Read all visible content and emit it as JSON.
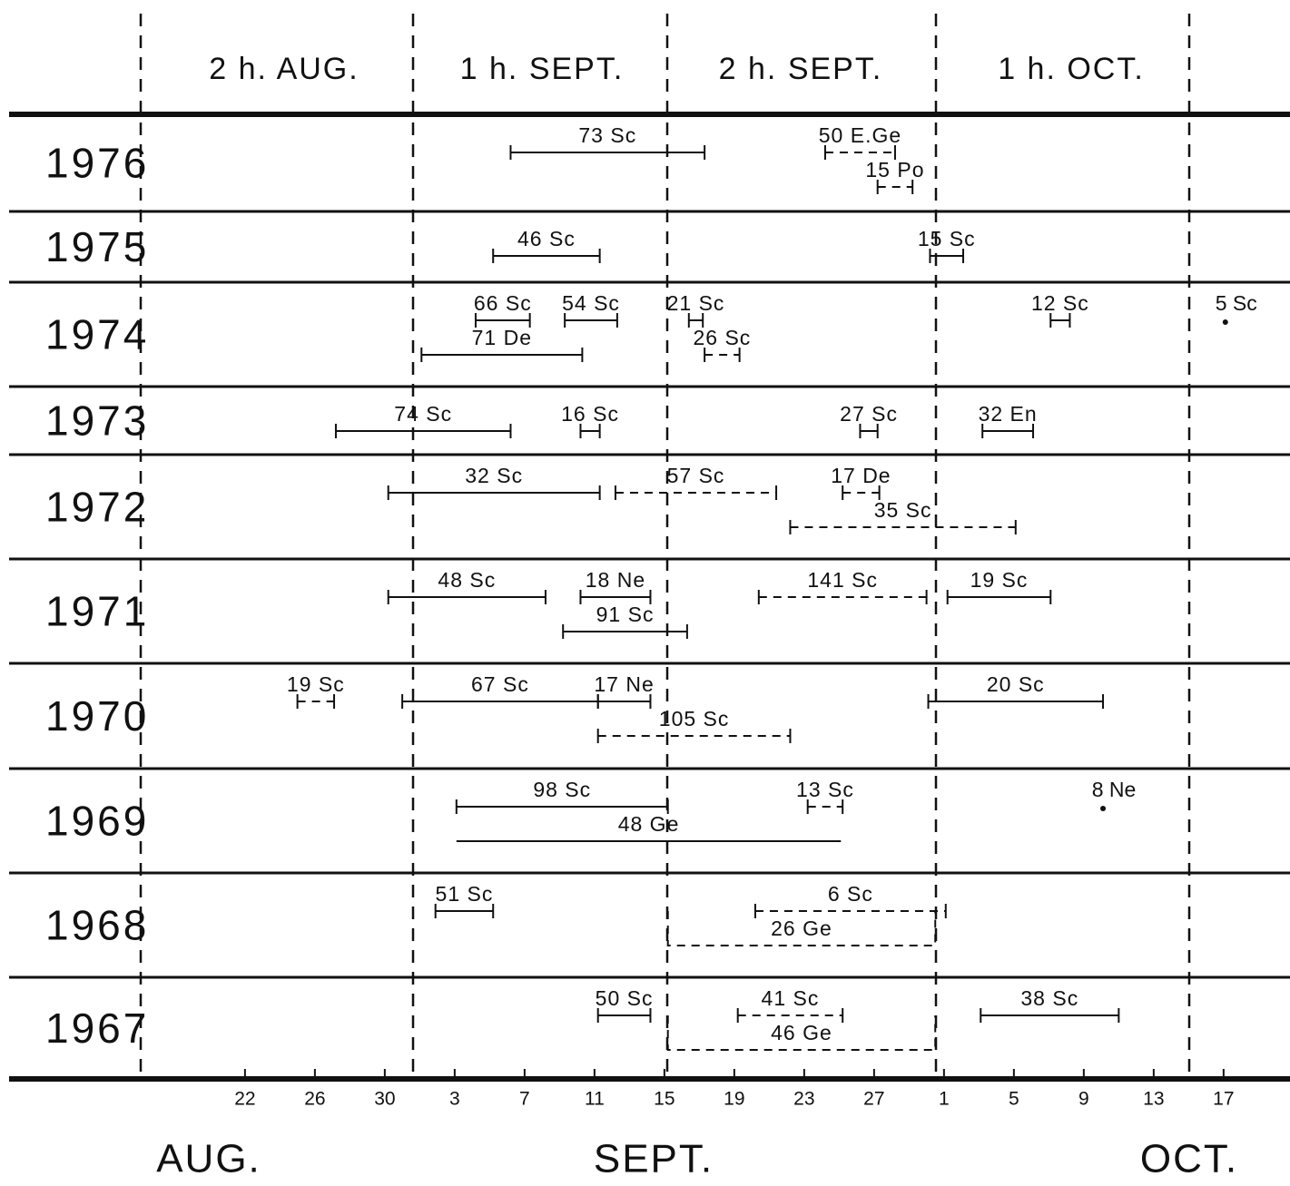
{
  "chart_data": {
    "type": "timeline",
    "periods": [
      "2 h. AUG.",
      "1 h. SEPT.",
      "2 h. SEPT.",
      "1 h. OCT."
    ],
    "months": [
      "AUG.",
      "SEPT.",
      "OCT."
    ],
    "xlim": [
      8.5,
      81.8
    ],
    "xticks": [
      22,
      26,
      30,
      {
        "value": 34,
        "label": "3"
      },
      {
        "value": 38,
        "label": "7"
      },
      {
        "value": 42,
        "label": "11"
      },
      {
        "value": 46,
        "label": "15"
      },
      {
        "value": 50,
        "label": "19"
      },
      {
        "value": 54,
        "label": "23"
      },
      {
        "value": 58,
        "label": "27"
      },
      {
        "value": 62,
        "label": "1"
      },
      {
        "value": 66,
        "label": "5"
      },
      {
        "value": 70,
        "label": "9"
      },
      {
        "value": 74,
        "label": "13"
      },
      {
        "value": 78,
        "label": "17"
      }
    ],
    "rows": [
      {
        "year": 1976,
        "items": [
          {
            "label": "73 Sc",
            "start": 37.2,
            "end": 48.3,
            "style": "solid",
            "lane": 0
          },
          {
            "label": "50 E.Ge",
            "start": 55.2,
            "end": 59.2,
            "style": "dashed",
            "lane": 0
          },
          {
            "label": "15 Po",
            "start": 58.2,
            "end": 60.2,
            "style": "dashed",
            "lane": 1
          }
        ]
      },
      {
        "year": 1975,
        "items": [
          {
            "label": "46 Sc",
            "start": 36.2,
            "end": 42.3,
            "style": "solid",
            "lane": 0
          },
          {
            "label": "15 Sc",
            "start": 61.2,
            "end": 63.1,
            "style": "solid",
            "lane": 0
          }
        ]
      },
      {
        "year": 1974,
        "items": [
          {
            "label": "66 Sc",
            "start": 35.2,
            "end": 38.3,
            "style": "solid",
            "lane": 0
          },
          {
            "label": "54 Sc",
            "start": 40.3,
            "end": 43.3,
            "style": "solid",
            "lane": 0
          },
          {
            "label": "21 Sc",
            "start": 47.4,
            "end": 48.2,
            "style": "solid",
            "lane": 0
          },
          {
            "label": "12 Sc",
            "start": 68.1,
            "end": 69.2,
            "style": "solid",
            "lane": 0
          },
          {
            "label": "5 Sc",
            "at": 78.1,
            "style": "point",
            "lane": 0
          },
          {
            "label": "71 De",
            "start": 32.1,
            "end": 41.3,
            "style": "solid",
            "lane": 1
          },
          {
            "label": "26 Sc",
            "start": 48.3,
            "end": 50.3,
            "style": "dashed",
            "lane": 1
          }
        ]
      },
      {
        "year": 1973,
        "items": [
          {
            "label": "74 Sc",
            "start": 27.2,
            "end": 37.2,
            "style": "solid",
            "lane": 0
          },
          {
            "label": "16 Sc",
            "start": 41.2,
            "end": 42.3,
            "style": "solid",
            "lane": 0
          },
          {
            "label": "27 Sc",
            "start": 57.2,
            "end": 58.2,
            "style": "solid",
            "lane": 0
          },
          {
            "label": "32 En",
            "start": 64.2,
            "end": 67.1,
            "style": "solid",
            "lane": 0
          }
        ]
      },
      {
        "year": 1972,
        "items": [
          {
            "label": "32 Sc",
            "start": 30.2,
            "end": 42.3,
            "style": "solid",
            "lane": 0
          },
          {
            "label": "57 Sc",
            "start": 43.2,
            "end": 52.4,
            "style": "dashed",
            "lane": 0
          },
          {
            "label": "17 De",
            "start": 56.2,
            "end": 58.3,
            "style": "dashed",
            "lane": 0
          },
          {
            "label": "35 Sc",
            "start": 53.2,
            "end": 66.1,
            "style": "dashed",
            "lane": 1
          }
        ]
      },
      {
        "year": 1971,
        "items": [
          {
            "label": "48 Sc",
            "start": 30.2,
            "end": 39.2,
            "style": "solid",
            "lane": 0
          },
          {
            "label": "18 Ne",
            "start": 41.2,
            "end": 45.2,
            "style": "solid",
            "lane": 0
          },
          {
            "label": "141 Sc",
            "start": 51.4,
            "end": 61.0,
            "style": "dashed",
            "lane": 0
          },
          {
            "label": "19 Sc",
            "start": 62.2,
            "end": 68.1,
            "style": "solid",
            "lane": 0
          },
          {
            "label": "91 Sc",
            "start": 40.2,
            "end": 47.3,
            "style": "solid",
            "lane": 1
          }
        ]
      },
      {
        "year": 1970,
        "items": [
          {
            "label": "19 Sc",
            "start": 25.0,
            "end": 27.1,
            "style": "dashed",
            "lane": 0
          },
          {
            "label": "67 Sc",
            "start": 31.0,
            "end": 42.2,
            "style": "solid",
            "lane": 0
          },
          {
            "label": "17 Ne",
            "start": 42.2,
            "end": 45.2,
            "style": "solid",
            "lane": 0
          },
          {
            "label": "20 Sc",
            "start": 61.1,
            "end": 71.1,
            "style": "solid",
            "lane": 0
          },
          {
            "label": "105 Sc",
            "start": 42.2,
            "end": 53.2,
            "style": "dashed",
            "lane": 1
          }
        ]
      },
      {
        "year": 1969,
        "items": [
          {
            "label": "98 Sc",
            "start": 34.1,
            "end": 46.2,
            "style": "solid",
            "lane": 0
          },
          {
            "label": "13 Sc",
            "start": 54.2,
            "end": 56.2,
            "style": "dashed",
            "lane": 0
          },
          {
            "label": "8 Ne",
            "at": 71.1,
            "style": "point",
            "lane": 0
          },
          {
            "label": "48 Ge",
            "start": 34.1,
            "end": 56.1,
            "style": "plain",
            "lane": 1
          }
        ]
      },
      {
        "year": 1968,
        "items": [
          {
            "label": "51 Sc",
            "start": 32.9,
            "end": 36.2,
            "style": "solid",
            "lane": 0
          },
          {
            "label": "6 Sc",
            "start": 51.2,
            "end": 62.1,
            "style": "dashed",
            "lane": 0
          },
          {
            "label": "26 Ge",
            "start": 46.2,
            "end": 61.5,
            "style": "bracket",
            "lane": 1
          }
        ]
      },
      {
        "year": 1967,
        "items": [
          {
            "label": "50 Sc",
            "start": 42.2,
            "end": 45.2,
            "style": "solid",
            "lane": 0
          },
          {
            "label": "41 Sc",
            "start": 50.2,
            "end": 56.2,
            "style": "dashed",
            "lane": 0
          },
          {
            "label": "38 Sc",
            "start": 64.1,
            "end": 72.0,
            "style": "solid",
            "lane": 0
          },
          {
            "label": "46 Ge",
            "start": 46.2,
            "end": 61.5,
            "style": "bracket",
            "lane": 1
          }
        ]
      }
    ]
  }
}
